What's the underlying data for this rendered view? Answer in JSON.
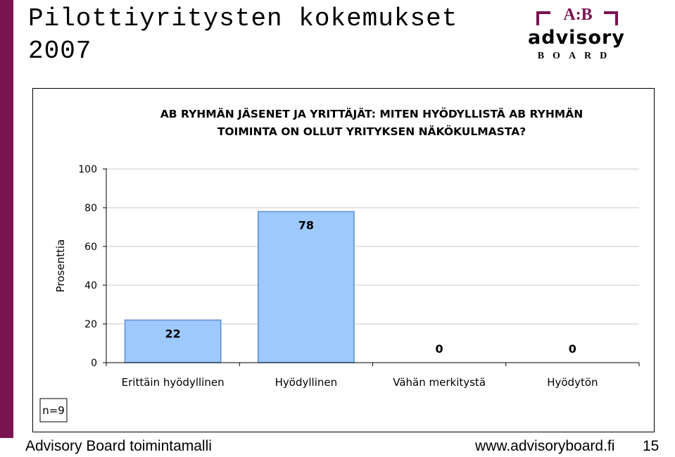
{
  "slide": {
    "title": "Pilottiyritysten kokemukset\n2007",
    "footer_left": "Advisory Board toimintamalli",
    "footer_url": "www.advisoryboard.fi",
    "page_number": "15"
  },
  "logo": {
    "ab": "A:B",
    "advisory": "advisory",
    "board": "BOARD"
  },
  "colors": {
    "accent": "#7a1450",
    "bar_fill": "#9ec9ff",
    "bar_stroke": "#5b8fd6",
    "grid": "#c8c8c8"
  },
  "chart_data": {
    "type": "bar",
    "title_lines": [
      "AB RYHMÄN JÄSENET JA YRITTÄJÄT: MITEN HYÖDYLLISTÄ AB RYHMÄN",
      "TOIMINTA ON OLLUT YRITYKSEN NÄKÖKULMASTA?"
    ],
    "ylabel": "Prosenttia",
    "categories": [
      "Erittäin hyödyllinen",
      "Hyödyllinen",
      "Vähän merkitystä",
      "Hyödytön"
    ],
    "values": [
      22,
      78,
      0,
      0
    ],
    "data_labels": [
      "22",
      "78",
      "0",
      "0"
    ],
    "ylim": [
      0,
      100
    ],
    "yticks": [
      0,
      20,
      40,
      60,
      80,
      100
    ],
    "grid": true,
    "note": "n=9"
  }
}
